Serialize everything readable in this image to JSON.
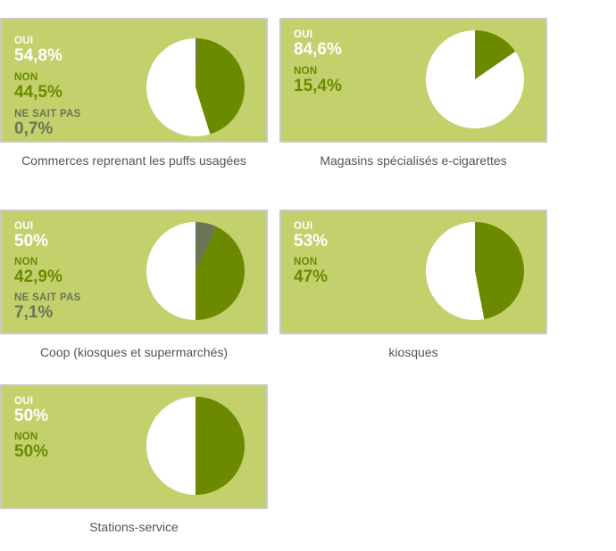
{
  "colors": {
    "panel": "#c3d06b",
    "oui": "#ffffff",
    "non": "#6b8a00",
    "ne_sait_pas": "#6b7556"
  },
  "chart_data": [
    {
      "type": "pie",
      "caption": "Commerces reprenant les puffs usagées",
      "slices": [
        {
          "label": "OUI",
          "value_text": "54,8%",
          "value": 54.8
        },
        {
          "label": "NON",
          "value_text": "44,5%",
          "value": 44.5
        },
        {
          "label": "NE SAIT PAS",
          "value_text": "0,7%",
          "value": 0.7
        }
      ]
    },
    {
      "type": "pie",
      "caption": "Magasins spécialisés e-cigarettes",
      "slices": [
        {
          "label": "OUI",
          "value_text": "84,6%",
          "value": 84.6
        },
        {
          "label": "NON",
          "value_text": "15,4%",
          "value": 15.4
        }
      ]
    },
    {
      "type": "pie",
      "caption": "Coop (kiosques et supermarchés)",
      "slices": [
        {
          "label": "OUI",
          "value_text": "50%",
          "value": 50
        },
        {
          "label": "NON",
          "value_text": "42,9%",
          "value": 42.9
        },
        {
          "label": "NE SAIT PAS",
          "value_text": "7,1%",
          "value": 7.1
        }
      ]
    },
    {
      "type": "pie",
      "caption": "kiosques",
      "slices": [
        {
          "label": "OUI",
          "value_text": "53%",
          "value": 53
        },
        {
          "label": "NON",
          "value_text": "47%",
          "value": 47
        }
      ]
    },
    {
      "type": "pie",
      "caption": "Stations-service",
      "slices": [
        {
          "label": "OUI",
          "value_text": "50%",
          "value": 50
        },
        {
          "label": "NON",
          "value_text": "50%",
          "value": 50
        }
      ]
    }
  ]
}
